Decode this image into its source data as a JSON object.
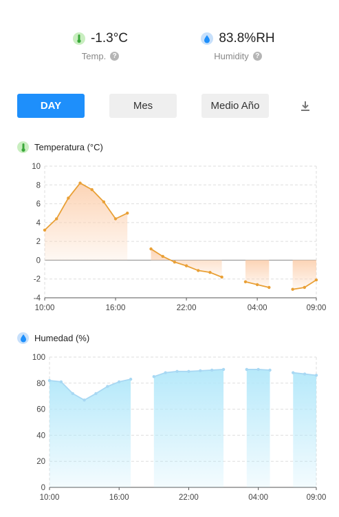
{
  "stats": {
    "temperature": {
      "value": "-1.3°C",
      "label": "Temp.",
      "icon": "thermometer-icon"
    },
    "humidity": {
      "value": "83.8%RH",
      "label": "Humidity",
      "icon": "droplet-icon"
    },
    "help_glyph": "?"
  },
  "tabs": {
    "day": "DAY",
    "month": "Mes",
    "half_year": "Medio Año",
    "active": "DAY"
  },
  "download_icon": "download-icon",
  "colors": {
    "accent": "#1e8ffb",
    "temp_line": "#e9a036",
    "temp_fill": "#fcd2b2",
    "hum_line": "#a8d8f3",
    "hum_fill": "#b3e8fa",
    "grid": "#dddddd"
  },
  "chart_data": [
    {
      "type": "area",
      "title": "Temperatura (°C)",
      "icon": "thermometer-icon",
      "ylim": [
        -4,
        10
      ],
      "yticks": [
        10,
        8,
        6,
        4,
        2,
        0,
        -2,
        -4
      ],
      "xlim": [
        10,
        33
      ],
      "xticks": [
        10,
        16,
        22,
        28,
        33
      ],
      "xtick_labels": [
        "10:00",
        "16:00",
        "22:00",
        "04:00",
        "09:00"
      ],
      "grid": true,
      "series": [
        {
          "values": [
            [
              10,
              3.2
            ],
            [
              11,
              4.4
            ],
            [
              12,
              6.6
            ],
            [
              13,
              8.2
            ],
            [
              14,
              7.5
            ],
            [
              15,
              6.2
            ],
            [
              16,
              4.4
            ],
            [
              17,
              5.0
            ]
          ]
        },
        {
          "values": [
            [
              19,
              1.2
            ],
            [
              20,
              0.4
            ],
            [
              21,
              -0.2
            ],
            [
              22,
              -0.6
            ],
            [
              23,
              -1.1
            ],
            [
              24,
              -1.3
            ],
            [
              25,
              -1.8
            ]
          ]
        },
        {
          "values": [
            [
              27,
              -2.3
            ],
            [
              28,
              -2.6
            ],
            [
              29,
              -2.9
            ]
          ]
        },
        {
          "values": [
            [
              31,
              -3.1
            ],
            [
              32,
              -2.9
            ],
            [
              33,
              -2.1
            ]
          ]
        }
      ]
    },
    {
      "type": "area",
      "title": "Humedad (%)",
      "icon": "droplet-icon",
      "ylim": [
        0,
        100
      ],
      "yticks": [
        100,
        80,
        60,
        40,
        20,
        0
      ],
      "xlim": [
        10,
        33
      ],
      "xticks": [
        10,
        16,
        22,
        28,
        33
      ],
      "xtick_labels": [
        "10:00",
        "16:00",
        "22:00",
        "04:00",
        "09:00"
      ],
      "grid": true,
      "series": [
        {
          "values": [
            [
              10,
              82
            ],
            [
              11,
              81
            ],
            [
              12,
              72
            ],
            [
              13,
              67
            ],
            [
              14,
              72
            ],
            [
              15,
              77.5
            ],
            [
              16,
              81
            ],
            [
              17,
              83
            ]
          ]
        },
        {
          "values": [
            [
              19,
              85
            ],
            [
              20,
              88
            ],
            [
              21,
              89
            ],
            [
              22,
              89
            ],
            [
              23,
              89.5
            ],
            [
              24,
              90
            ],
            [
              25,
              90.5
            ]
          ]
        },
        {
          "values": [
            [
              27,
              90.5
            ],
            [
              28,
              90.5
            ],
            [
              29,
              90
            ]
          ]
        },
        {
          "values": [
            [
              31,
              88
            ],
            [
              32,
              87
            ],
            [
              33,
              86
            ]
          ]
        }
      ]
    }
  ]
}
